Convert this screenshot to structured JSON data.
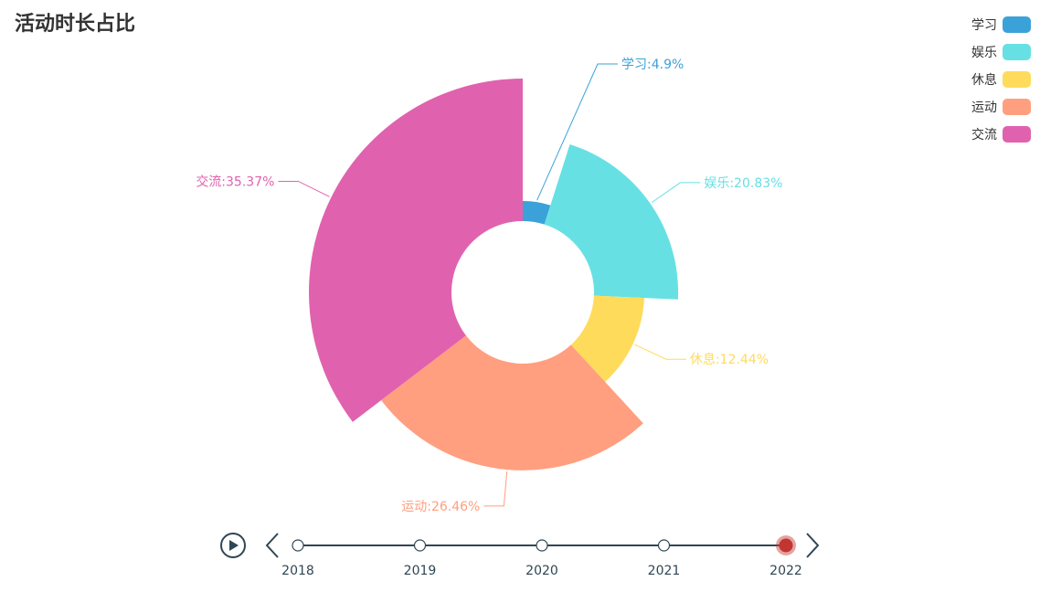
{
  "title": "活动时长占比",
  "legend": {
    "items": [
      {
        "label": "学习",
        "color": "#3ba2d9"
      },
      {
        "label": "娱乐",
        "color": "#67e0e3"
      },
      {
        "label": "休息",
        "color": "#ffdb5c"
      },
      {
        "label": "运动",
        "color": "#ff9f7f"
      },
      {
        "label": "交流",
        "color": "#e062ae"
      }
    ]
  },
  "chart_data": {
    "type": "pie",
    "variant": "rose (radius proportional to value)",
    "title": "活动时长占比",
    "slices": [
      {
        "name": "学习",
        "percent": 4.9,
        "label": "学习:4.9%",
        "color": "#3ba2d9"
      },
      {
        "name": "娱乐",
        "percent": 20.83,
        "label": "娱乐:20.83%",
        "color": "#67e0e3"
      },
      {
        "name": "休息",
        "percent": 12.44,
        "label": "休息:12.44%",
        "color": "#ffdb5c"
      },
      {
        "name": "运动",
        "percent": 26.46,
        "label": "运动:26.46%",
        "color": "#ff9f7f"
      },
      {
        "name": "交流",
        "percent": 35.37,
        "label": "交流:35.37%",
        "color": "#e062ae"
      }
    ],
    "legend_position": "top-right"
  },
  "timeline": {
    "years": [
      "2018",
      "2019",
      "2020",
      "2021",
      "2022"
    ],
    "current": "2022",
    "line_color": "#304654",
    "active_color": "#c23531"
  }
}
